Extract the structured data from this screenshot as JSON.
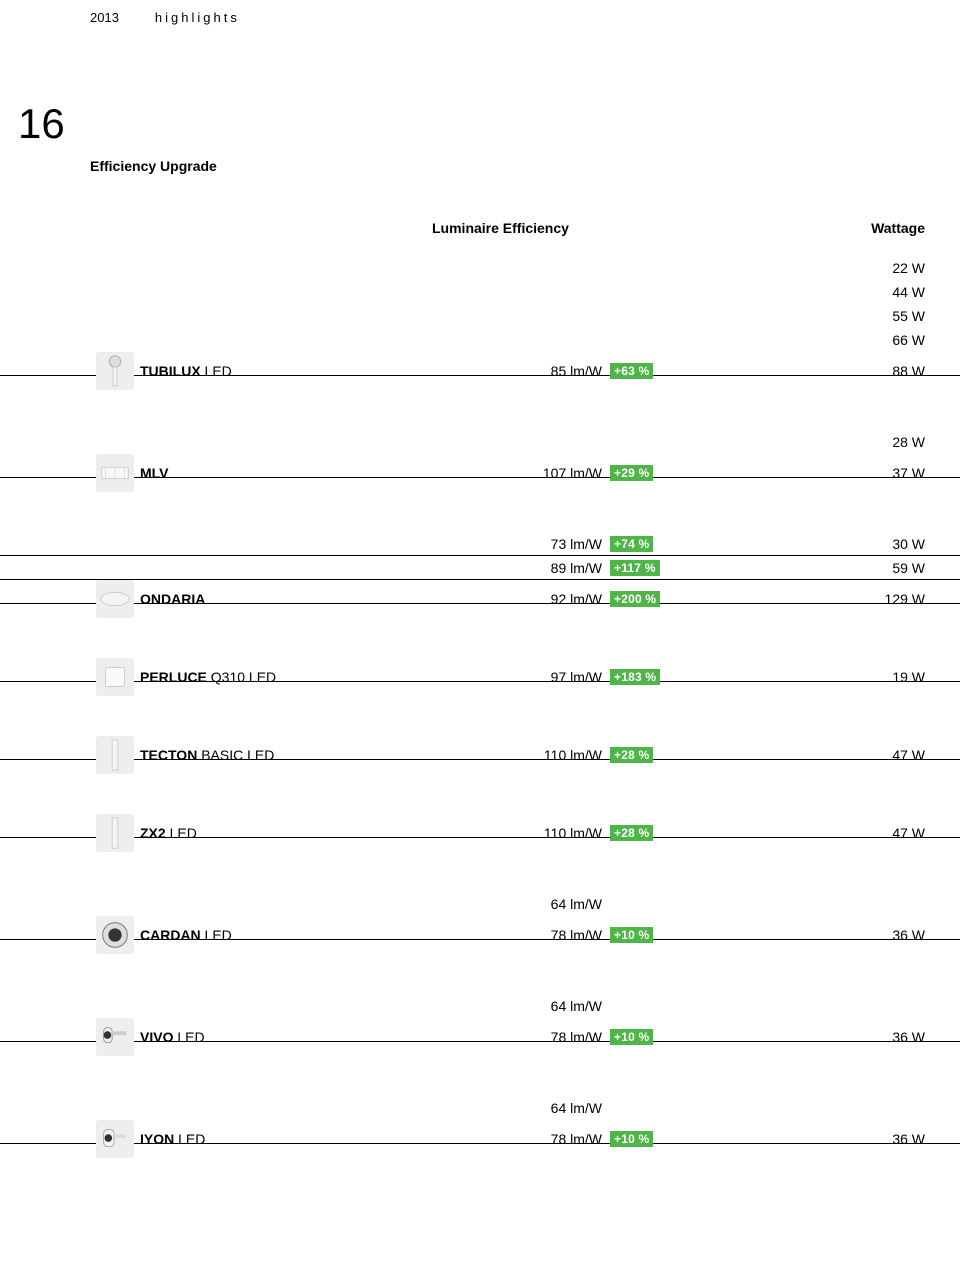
{
  "header": {
    "year": "2013",
    "highlights": "highlights"
  },
  "page_number": "16",
  "section_title": "Efficiency Upgrade",
  "col_headers": {
    "efficiency": "Luminaire Efficiency",
    "wattage": "Wattage"
  },
  "badge_bg": "#4fb548",
  "groups": [
    {
      "icon": "tubilux-icon",
      "rows": [
        {
          "name": "",
          "eff": "",
          "pct": "",
          "watt": "22 W",
          "border": false
        },
        {
          "name": "",
          "eff": "",
          "pct": "",
          "watt": "44 W",
          "border": false
        },
        {
          "name": "",
          "eff": "",
          "pct": "",
          "watt": "55 W",
          "border": false
        },
        {
          "name": "",
          "eff": "",
          "pct": "",
          "watt": "66 W",
          "border": false
        },
        {
          "name_bold": "TUBILUX",
          "name_rest": " LED",
          "eff": "85 lm/W",
          "pct": "+63 %",
          "watt": "88 W",
          "border": true
        }
      ]
    },
    {
      "icon": "mlv-icon",
      "rows": [
        {
          "name": "",
          "eff": "",
          "pct": "",
          "watt": "28 W",
          "border": false
        },
        {
          "name_bold": "MLV",
          "name_rest": "",
          "eff": "107 lm/W",
          "pct": "+29 %",
          "watt": "37 W",
          "border": true
        }
      ]
    },
    {
      "icon": "ondaria-icon",
      "rows": [
        {
          "name": "",
          "eff": "73 lm/W",
          "pct": "+74 %",
          "watt": "30 W",
          "border": true
        },
        {
          "name": "",
          "eff": "89 lm/W",
          "pct": "+117 %",
          "watt": "59 W",
          "border": true
        },
        {
          "name_bold": "ONDARIA",
          "name_rest": "",
          "eff": "92 lm/W",
          "pct": "+200 %",
          "watt": "129 W",
          "border": true
        }
      ]
    },
    {
      "icon": "perluce-icon",
      "rows": [
        {
          "name_bold": "PERLUCE",
          "name_rest": " Q310 LED",
          "eff": "97 lm/W",
          "pct": "+183 %",
          "watt": "19 W",
          "border": true
        }
      ]
    },
    {
      "icon": "tecton-icon",
      "rows": [
        {
          "name_bold": "TECTON",
          "name_rest": " BASIC LED",
          "eff": "110 lm/W",
          "pct": "+28 %",
          "watt": "47 W",
          "border": true
        }
      ]
    },
    {
      "icon": "zx2-icon",
      "rows": [
        {
          "name_bold": "ZX2",
          "name_rest": " LED",
          "eff": "110 lm/W",
          "pct": "+28 %",
          "watt": "47 W",
          "border": true
        }
      ]
    },
    {
      "icon": "cardan-icon",
      "rows": [
        {
          "name": "",
          "eff": "64 lm/W",
          "pct": "",
          "watt": "",
          "border": false
        },
        {
          "name_bold": "CARDAN",
          "name_rest": " LED",
          "eff": "78 lm/W",
          "pct": "+10 %",
          "watt": "36 W",
          "border": true
        }
      ]
    },
    {
      "icon": "vivo-icon",
      "rows": [
        {
          "name": "",
          "eff": "64 lm/W",
          "pct": "",
          "watt": "",
          "border": false
        },
        {
          "name_bold": "VIVO",
          "name_rest": " LED",
          "eff": "78 lm/W",
          "pct": "+10 %",
          "watt": "36 W",
          "border": true
        }
      ]
    },
    {
      "icon": "iyon-icon",
      "rows": [
        {
          "name": "",
          "eff": "64 lm/W",
          "pct": "",
          "watt": "",
          "border": false
        },
        {
          "name_bold": "IYON",
          "name_rest": " LED",
          "eff": "78 lm/W",
          "pct": "+10 %",
          "watt": "36 W",
          "border": true
        }
      ]
    }
  ]
}
